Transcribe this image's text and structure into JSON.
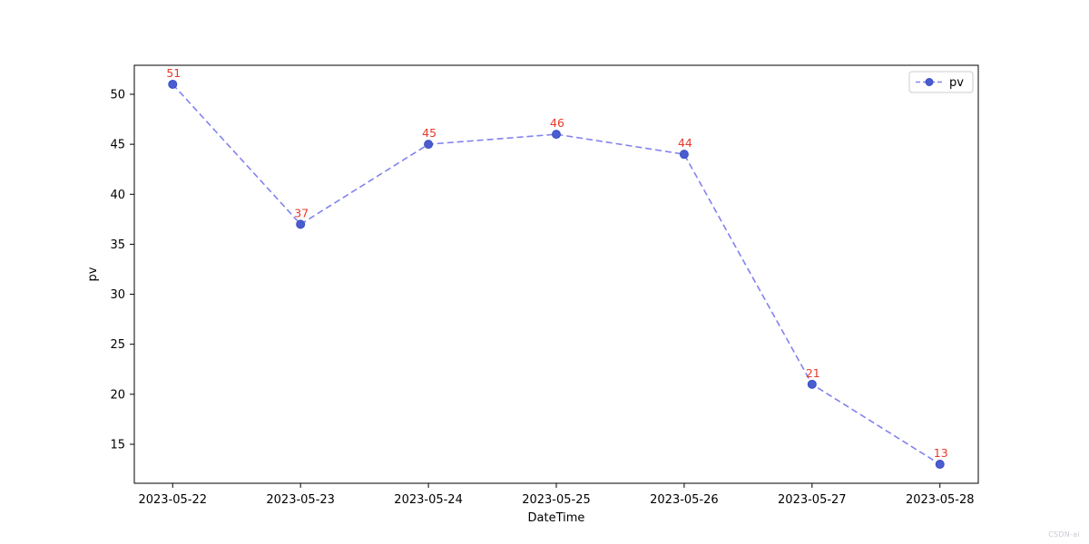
{
  "watermark": "CSDN-ai",
  "chart_data": {
    "type": "line",
    "title": "",
    "xlabel": "DateTime",
    "ylabel": "pv",
    "categories": [
      "2023-05-22",
      "2023-05-23",
      "2023-05-24",
      "2023-05-25",
      "2023-05-26",
      "2023-05-27",
      "2023-05-28"
    ],
    "series": [
      {
        "name": "pv",
        "values": [
          51,
          37,
          45,
          46,
          44,
          21,
          13
        ]
      }
    ],
    "data_labels": [
      "51",
      "37",
      "45",
      "46",
      "44",
      "21",
      "13"
    ],
    "yticks": [
      15,
      20,
      25,
      30,
      35,
      40,
      45,
      50
    ],
    "ylim": [
      11.1,
      52.9
    ],
    "xlim_index": [
      -0.3,
      6.3
    ],
    "grid": false,
    "legend_position": "upper right",
    "line_color": "#8282ee",
    "line_style": "dashed",
    "marker_color": "#4a5cd0",
    "marker_edge_color": "#3b4ec2",
    "data_label_color": "#e8392a",
    "axis_color": "#000000",
    "tick_label_color": "#000000",
    "legend_border_color": "#cccccc",
    "legend_label": "pv"
  }
}
